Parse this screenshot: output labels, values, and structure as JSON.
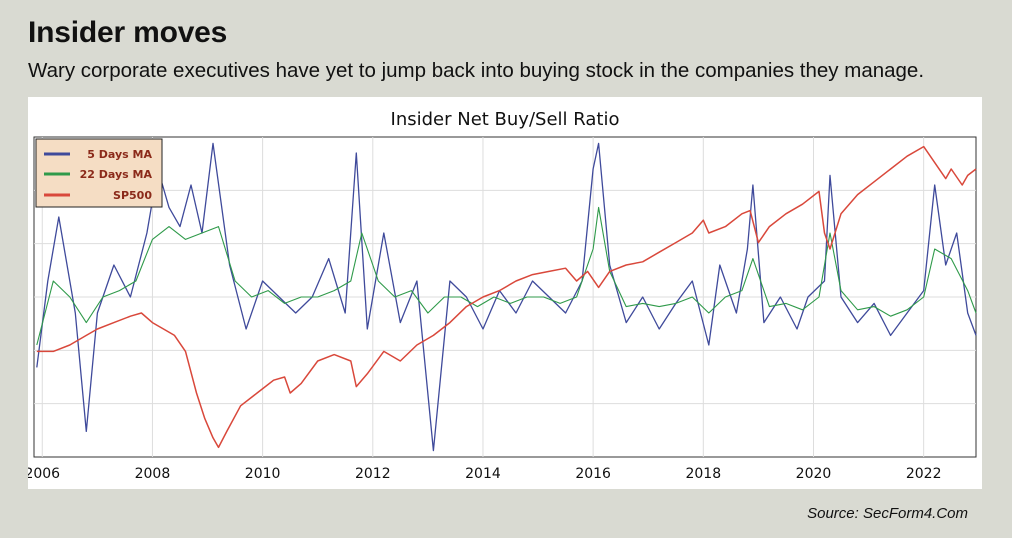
{
  "header": {
    "title": "Insider moves",
    "subtitle": "Wary corporate executives have yet to jump back into buying stock in the companies they manage."
  },
  "source": "Source: SecForm4.Com",
  "colors": {
    "background": "#d9dad2",
    "series_5day": "#3f4a9b",
    "series_22day": "#2f9a4a",
    "series_sp500": "#d9483b"
  },
  "chart_data": {
    "type": "line",
    "title": "Insider Net Buy/Sell Ratio",
    "xlabel": "",
    "ylabel": "",
    "x_ticks": [
      "2006",
      "2008",
      "2010",
      "2012",
      "2014",
      "2016",
      "2018",
      "2020",
      "2022"
    ],
    "xlim": [
      2005.85,
      2022.95
    ],
    "grid": true,
    "legend_position": "top-left",
    "series": [
      {
        "name": "5 Days MA",
        "color": "#3f4a9b",
        "points": [
          [
            2005.9,
            0.28
          ],
          [
            2006.1,
            0.55
          ],
          [
            2006.3,
            0.75
          ],
          [
            2006.6,
            0.45
          ],
          [
            2006.8,
            0.08
          ],
          [
            2007.0,
            0.45
          ],
          [
            2007.3,
            0.6
          ],
          [
            2007.6,
            0.5
          ],
          [
            2007.9,
            0.7
          ],
          [
            2008.1,
            0.9
          ],
          [
            2008.3,
            0.78
          ],
          [
            2008.5,
            0.72
          ],
          [
            2008.7,
            0.85
          ],
          [
            2008.9,
            0.7
          ],
          [
            2009.1,
            0.98
          ],
          [
            2009.4,
            0.6
          ],
          [
            2009.7,
            0.4
          ],
          [
            2010.0,
            0.55
          ],
          [
            2010.3,
            0.5
          ],
          [
            2010.6,
            0.45
          ],
          [
            2010.9,
            0.5
          ],
          [
            2011.2,
            0.62
          ],
          [
            2011.5,
            0.45
          ],
          [
            2011.7,
            0.95
          ],
          [
            2011.9,
            0.4
          ],
          [
            2012.2,
            0.7
          ],
          [
            2012.5,
            0.42
          ],
          [
            2012.8,
            0.55
          ],
          [
            2013.1,
            0.02
          ],
          [
            2013.4,
            0.55
          ],
          [
            2013.7,
            0.5
          ],
          [
            2014.0,
            0.4
          ],
          [
            2014.3,
            0.52
          ],
          [
            2014.6,
            0.45
          ],
          [
            2014.9,
            0.55
          ],
          [
            2015.2,
            0.5
          ],
          [
            2015.5,
            0.45
          ],
          [
            2015.8,
            0.55
          ],
          [
            2016.0,
            0.9
          ],
          [
            2016.1,
            0.98
          ],
          [
            2016.3,
            0.6
          ],
          [
            2016.6,
            0.42
          ],
          [
            2016.9,
            0.5
          ],
          [
            2017.2,
            0.4
          ],
          [
            2017.5,
            0.48
          ],
          [
            2017.8,
            0.55
          ],
          [
            2018.1,
            0.35
          ],
          [
            2018.3,
            0.6
          ],
          [
            2018.6,
            0.45
          ],
          [
            2018.8,
            0.65
          ],
          [
            2018.9,
            0.85
          ],
          [
            2019.1,
            0.42
          ],
          [
            2019.4,
            0.5
          ],
          [
            2019.7,
            0.4
          ],
          [
            2019.9,
            0.5
          ],
          [
            2020.2,
            0.55
          ],
          [
            2020.3,
            0.88
          ],
          [
            2020.5,
            0.5
          ],
          [
            2020.8,
            0.42
          ],
          [
            2021.1,
            0.48
          ],
          [
            2021.4,
            0.38
          ],
          [
            2021.7,
            0.45
          ],
          [
            2022.0,
            0.52
          ],
          [
            2022.2,
            0.85
          ],
          [
            2022.4,
            0.6
          ],
          [
            2022.6,
            0.7
          ],
          [
            2022.8,
            0.45
          ],
          [
            2022.95,
            0.38
          ]
        ]
      },
      {
        "name": "22 Days MA",
        "color": "#2f9a4a",
        "points": [
          [
            2005.9,
            0.35
          ],
          [
            2006.2,
            0.55
          ],
          [
            2006.5,
            0.5
          ],
          [
            2006.8,
            0.42
          ],
          [
            2007.1,
            0.5
          ],
          [
            2007.4,
            0.52
          ],
          [
            2007.7,
            0.55
          ],
          [
            2008.0,
            0.68
          ],
          [
            2008.3,
            0.72
          ],
          [
            2008.6,
            0.68
          ],
          [
            2008.9,
            0.7
          ],
          [
            2009.2,
            0.72
          ],
          [
            2009.5,
            0.55
          ],
          [
            2009.8,
            0.5
          ],
          [
            2010.1,
            0.52
          ],
          [
            2010.4,
            0.48
          ],
          [
            2010.7,
            0.5
          ],
          [
            2011.0,
            0.5
          ],
          [
            2011.3,
            0.52
          ],
          [
            2011.6,
            0.55
          ],
          [
            2011.8,
            0.7
          ],
          [
            2012.1,
            0.55
          ],
          [
            2012.4,
            0.5
          ],
          [
            2012.7,
            0.52
          ],
          [
            2013.0,
            0.45
          ],
          [
            2013.3,
            0.5
          ],
          [
            2013.6,
            0.5
          ],
          [
            2013.9,
            0.47
          ],
          [
            2014.2,
            0.5
          ],
          [
            2014.5,
            0.48
          ],
          [
            2014.8,
            0.5
          ],
          [
            2015.1,
            0.5
          ],
          [
            2015.4,
            0.48
          ],
          [
            2015.7,
            0.5
          ],
          [
            2016.0,
            0.65
          ],
          [
            2016.1,
            0.78
          ],
          [
            2016.3,
            0.58
          ],
          [
            2016.6,
            0.47
          ],
          [
            2016.9,
            0.48
          ],
          [
            2017.2,
            0.47
          ],
          [
            2017.5,
            0.48
          ],
          [
            2017.8,
            0.5
          ],
          [
            2018.1,
            0.45
          ],
          [
            2018.4,
            0.5
          ],
          [
            2018.7,
            0.52
          ],
          [
            2018.9,
            0.62
          ],
          [
            2019.2,
            0.47
          ],
          [
            2019.5,
            0.48
          ],
          [
            2019.8,
            0.46
          ],
          [
            2020.1,
            0.5
          ],
          [
            2020.3,
            0.7
          ],
          [
            2020.5,
            0.52
          ],
          [
            2020.8,
            0.46
          ],
          [
            2021.1,
            0.47
          ],
          [
            2021.4,
            0.44
          ],
          [
            2021.7,
            0.46
          ],
          [
            2022.0,
            0.5
          ],
          [
            2022.2,
            0.65
          ],
          [
            2022.5,
            0.62
          ],
          [
            2022.8,
            0.52
          ],
          [
            2022.95,
            0.45
          ]
        ]
      },
      {
        "name": "SP500",
        "color": "#d9483b",
        "points": [
          [
            2005.9,
            0.33
          ],
          [
            2006.2,
            0.33
          ],
          [
            2006.5,
            0.35
          ],
          [
            2006.8,
            0.38
          ],
          [
            2007.0,
            0.4
          ],
          [
            2007.3,
            0.42
          ],
          [
            2007.6,
            0.44
          ],
          [
            2007.8,
            0.45
          ],
          [
            2008.0,
            0.42
          ],
          [
            2008.2,
            0.4
          ],
          [
            2008.4,
            0.38
          ],
          [
            2008.6,
            0.33
          ],
          [
            2008.8,
            0.2
          ],
          [
            2008.95,
            0.12
          ],
          [
            2009.1,
            0.06
          ],
          [
            2009.2,
            0.03
          ],
          [
            2009.35,
            0.08
          ],
          [
            2009.6,
            0.16
          ],
          [
            2009.9,
            0.2
          ],
          [
            2010.2,
            0.24
          ],
          [
            2010.4,
            0.25
          ],
          [
            2010.5,
            0.2
          ],
          [
            2010.7,
            0.23
          ],
          [
            2011.0,
            0.3
          ],
          [
            2011.3,
            0.32
          ],
          [
            2011.6,
            0.3
          ],
          [
            2011.7,
            0.22
          ],
          [
            2011.9,
            0.26
          ],
          [
            2012.2,
            0.33
          ],
          [
            2012.5,
            0.3
          ],
          [
            2012.8,
            0.35
          ],
          [
            2013.1,
            0.38
          ],
          [
            2013.4,
            0.42
          ],
          [
            2013.7,
            0.47
          ],
          [
            2014.0,
            0.5
          ],
          [
            2014.3,
            0.52
          ],
          [
            2014.6,
            0.55
          ],
          [
            2014.9,
            0.57
          ],
          [
            2015.2,
            0.58
          ],
          [
            2015.5,
            0.59
          ],
          [
            2015.7,
            0.55
          ],
          [
            2015.9,
            0.58
          ],
          [
            2016.1,
            0.53
          ],
          [
            2016.3,
            0.58
          ],
          [
            2016.6,
            0.6
          ],
          [
            2016.9,
            0.61
          ],
          [
            2017.2,
            0.64
          ],
          [
            2017.5,
            0.67
          ],
          [
            2017.8,
            0.7
          ],
          [
            2018.0,
            0.74
          ],
          [
            2018.1,
            0.7
          ],
          [
            2018.4,
            0.72
          ],
          [
            2018.7,
            0.76
          ],
          [
            2018.85,
            0.77
          ],
          [
            2019.0,
            0.67
          ],
          [
            2019.2,
            0.72
          ],
          [
            2019.5,
            0.76
          ],
          [
            2019.8,
            0.79
          ],
          [
            2020.1,
            0.83
          ],
          [
            2020.2,
            0.7
          ],
          [
            2020.3,
            0.65
          ],
          [
            2020.5,
            0.76
          ],
          [
            2020.8,
            0.82
          ],
          [
            2021.1,
            0.86
          ],
          [
            2021.4,
            0.9
          ],
          [
            2021.7,
            0.94
          ],
          [
            2022.0,
            0.97
          ],
          [
            2022.2,
            0.92
          ],
          [
            2022.4,
            0.87
          ],
          [
            2022.5,
            0.9
          ],
          [
            2022.7,
            0.85
          ],
          [
            2022.8,
            0.88
          ],
          [
            2022.95,
            0.9
          ]
        ]
      }
    ]
  }
}
